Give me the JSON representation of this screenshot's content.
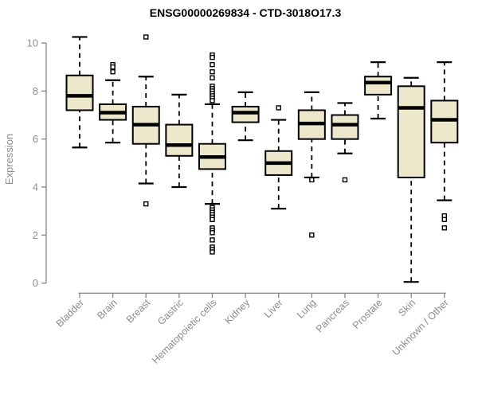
{
  "chart_data": {
    "type": "boxplot",
    "title": "ENSG00000269834 - CTD-3018O17.3",
    "xlabel": "",
    "ylabel": "Expression",
    "ylim": [
      0,
      10
    ],
    "yticks": [
      0,
      2,
      4,
      6,
      8,
      10
    ],
    "grid": false,
    "legend": "none",
    "categories": [
      "Bladder",
      "Brain",
      "Breast",
      "Gastric",
      "Hematopoietic cells",
      "Kidney",
      "Liver",
      "Lung",
      "Pancreas",
      "Prostate",
      "Skin",
      "Unknown / Other"
    ],
    "series": [
      {
        "name": "Bladder",
        "whisker_low": 5.65,
        "q1": 7.2,
        "median": 7.8,
        "q3": 8.65,
        "whisker_high": 10.25,
        "outliers": []
      },
      {
        "name": "Brain",
        "whisker_low": 5.85,
        "q1": 6.8,
        "median": 7.1,
        "q3": 7.45,
        "whisker_high": 8.45,
        "outliers": [
          9.1,
          9.0,
          8.8
        ]
      },
      {
        "name": "Breast",
        "whisker_low": 4.15,
        "q1": 5.8,
        "median": 6.6,
        "q3": 7.35,
        "whisker_high": 8.6,
        "outliers": [
          10.25,
          3.3
        ]
      },
      {
        "name": "Gastric",
        "whisker_low": 4.0,
        "q1": 5.3,
        "median": 5.75,
        "q3": 6.6,
        "whisker_high": 7.85,
        "outliers": []
      },
      {
        "name": "Hematopoietic cells",
        "whisker_low": 3.3,
        "q1": 4.75,
        "median": 5.25,
        "q3": 5.8,
        "whisker_high": 7.45,
        "outliers": [
          9.5,
          9.4,
          9.1,
          8.8,
          8.55,
          8.2,
          8.1,
          8.0,
          7.9,
          7.8,
          7.7,
          7.6,
          3.15,
          3.05,
          2.95,
          2.85,
          2.75,
          2.65,
          2.3,
          2.2,
          2.1,
          1.8,
          1.5,
          1.4,
          1.3
        ]
      },
      {
        "name": "Kidney",
        "whisker_low": 5.95,
        "q1": 6.7,
        "median": 7.1,
        "q3": 7.35,
        "whisker_high": 7.95,
        "outliers": []
      },
      {
        "name": "Liver",
        "whisker_low": 3.1,
        "q1": 4.5,
        "median": 5.0,
        "q3": 5.5,
        "whisker_high": 6.8,
        "outliers": [
          7.3
        ]
      },
      {
        "name": "Lung",
        "whisker_low": 4.4,
        "q1": 6.0,
        "median": 6.65,
        "q3": 7.2,
        "whisker_high": 7.95,
        "outliers": [
          4.3,
          2.0
        ]
      },
      {
        "name": "Pancreas",
        "whisker_low": 5.4,
        "q1": 6.0,
        "median": 6.6,
        "q3": 7.0,
        "whisker_high": 7.5,
        "outliers": [
          4.3
        ]
      },
      {
        "name": "Prostate",
        "whisker_low": 6.85,
        "q1": 7.85,
        "median": 8.35,
        "q3": 8.6,
        "whisker_high": 9.2,
        "outliers": []
      },
      {
        "name": "Skin",
        "whisker_low": 0.05,
        "q1": 4.4,
        "median": 7.3,
        "q3": 8.2,
        "whisker_high": 8.55,
        "outliers": []
      },
      {
        "name": "Unknown / Other",
        "whisker_low": 3.45,
        "q1": 5.85,
        "median": 6.8,
        "q3": 7.6,
        "whisker_high": 9.2,
        "outliers": [
          2.8,
          2.65,
          2.3
        ]
      }
    ],
    "colors": {
      "box_fill": "#EDE7CB",
      "box_stroke": "#000000",
      "median": "#000000",
      "whisker": "#000000",
      "outlier_stroke": "#000000",
      "outlier_fill": "#ffffff",
      "axis": "#8C8C8C",
      "title": "#000000"
    }
  }
}
